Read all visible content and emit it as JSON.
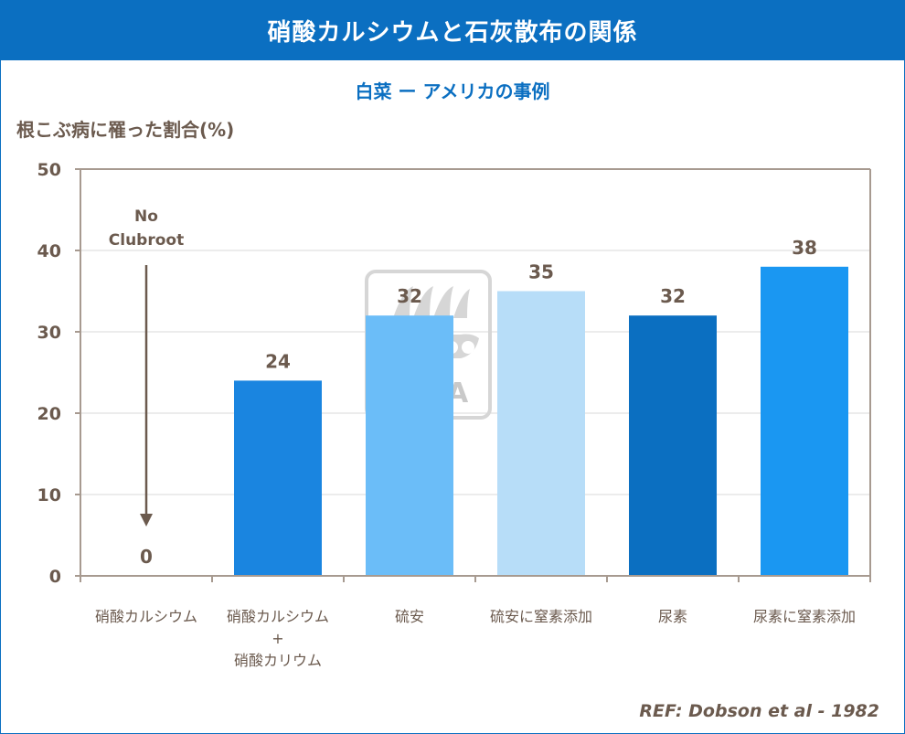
{
  "header": {
    "title": "硝酸カルシウムと石灰散布の関係",
    "subtitle": "白菜 ー アメリカの事例"
  },
  "colors": {
    "title_bar": "#0b6fc1",
    "text": "#6b5a4e",
    "axis": "#a79a90",
    "grid": "#d9d9d9"
  },
  "watermark": {
    "text": "YARA",
    "icon": "yara-viking-ship-logo"
  },
  "reference": "REF: Dobson et al - 1982",
  "chart_data": {
    "type": "bar",
    "title": "",
    "xlabel": "",
    "ylabel": "根こぶ病に罹った割合(%)",
    "ylim": [
      0,
      50
    ],
    "yticks": [
      0,
      10,
      20,
      30,
      40,
      50
    ],
    "grid": true,
    "categories": [
      [
        "硝酸カルシウム"
      ],
      [
        "硝酸カルシウム",
        "+",
        "硝酸カリウム"
      ],
      [
        "硫安"
      ],
      [
        "硫安に窒素添加"
      ],
      [
        "尿素"
      ],
      [
        "尿素に窒素添加"
      ]
    ],
    "values": [
      0,
      24,
      32,
      35,
      32,
      38
    ],
    "bar_colors": [
      "#0b6fc1",
      "#1a85e0",
      "#6bbdf8",
      "#b7ddf8",
      "#0b6fc1",
      "#1a97f2"
    ],
    "annotation": {
      "text": [
        "No",
        "Clubroot"
      ],
      "category_index": 0
    }
  }
}
